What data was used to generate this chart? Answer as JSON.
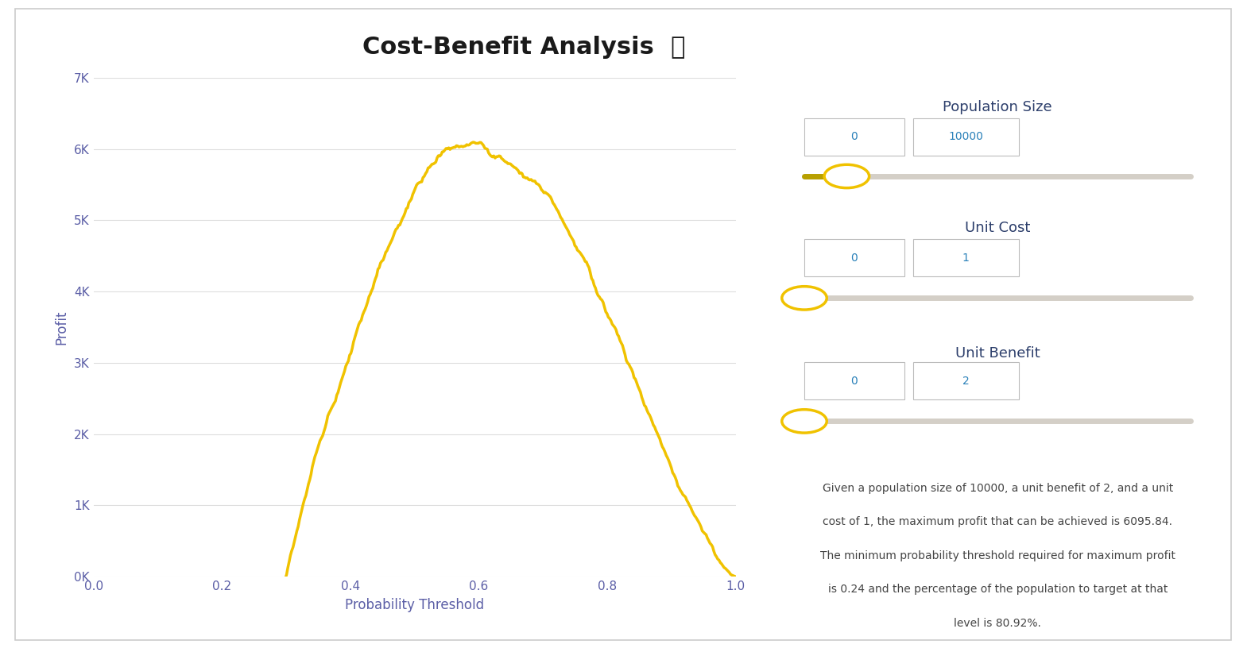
{
  "title": "Cost-Benefit Analysis",
  "title_fontsize": 22,
  "title_color": "#1a1a1a",
  "background_color": "#ffffff",
  "line_color": "#f0c200",
  "line_width": 2.5,
  "xlabel": "Probability Threshold",
  "ylabel": "Profit",
  "xlabel_color": "#5b5ea6",
  "ylabel_color": "#5b5ea6",
  "tick_color": "#5b5ea6",
  "grid_color": "#dddddd",
  "xlim": [
    0.0,
    1.0
  ],
  "ylim": [
    0,
    7000
  ],
  "yticks": [
    0,
    1000,
    2000,
    3000,
    4000,
    5000,
    6000,
    7000
  ],
  "ytick_labels": [
    "0K",
    "1K",
    "2K",
    "3K",
    "4K",
    "5K",
    "6K",
    "7K"
  ],
  "xticks": [
    0.0,
    0.2,
    0.4,
    0.6,
    0.8,
    1.0
  ],
  "population_size": 10000,
  "unit_cost": 1,
  "unit_benefit": 2,
  "max_profit": 6095.84,
  "optimal_threshold": 0.24,
  "target_percentage": 80.92,
  "panel_label_color": "#2c3e6b",
  "panel_value_color": "#2980b9",
  "slider_track_color": "#d4cfc7",
  "slider_handle_color": "#f0c200",
  "description_color": "#444444",
  "box_border_color": "#bbbbbb",
  "info_text": "Given a population size of 10000, a unit benefit of 2, and a unit\ncost of 1, the maximum profit that can be achieved is 6095.84.\nThe minimum probability threshold required for maximum profit\nis 0.24 and the percentage of the population to target at that\nlevel is 80.92%."
}
